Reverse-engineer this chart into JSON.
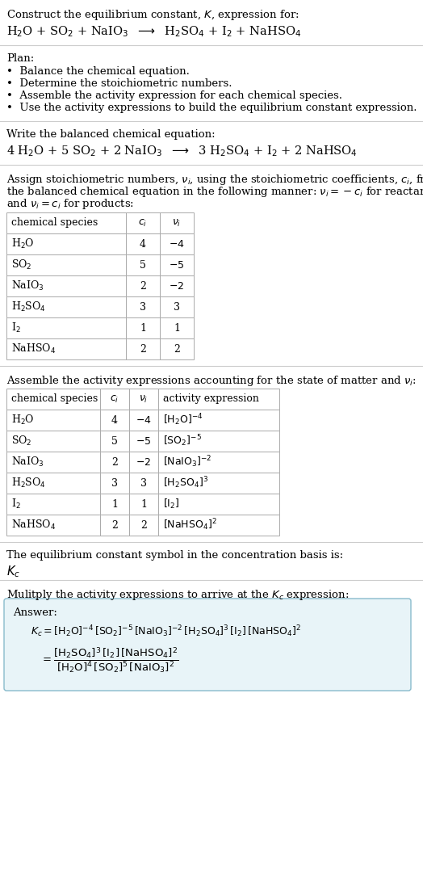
{
  "title_line1": "Construct the equilibrium constant, $K$, expression for:",
  "reaction_unbalanced": "H$_2$O + SO$_2$ + NaIO$_3$  $\\longrightarrow$  H$_2$SO$_4$ + I$_2$ + NaHSO$_4$",
  "plan_title": "Plan:",
  "plan_items": [
    "•  Balance the chemical equation.",
    "•  Determine the stoichiometric numbers.",
    "•  Assemble the activity expression for each chemical species.",
    "•  Use the activity expressions to build the equilibrium constant expression."
  ],
  "balanced_label": "Write the balanced chemical equation:",
  "reaction_balanced": "4 H$_2$O + 5 SO$_2$ + 2 NaIO$_3$  $\\longrightarrow$  3 H$_2$SO$_4$ + I$_2$ + 2 NaHSO$_4$",
  "stoich_intro_lines": [
    "Assign stoichiometric numbers, $\\nu_i$, using the stoichiometric coefficients, $c_i$, from",
    "the balanced chemical equation in the following manner: $\\nu_i = -c_i$ for reactants",
    "and $\\nu_i = c_i$ for products:"
  ],
  "table1_headers": [
    "chemical species",
    "$c_i$",
    "$\\nu_i$"
  ],
  "table1_rows": [
    [
      "H$_2$O",
      "4",
      "$-4$"
    ],
    [
      "SO$_2$",
      "5",
      "$-5$"
    ],
    [
      "NaIO$_3$",
      "2",
      "$-2$"
    ],
    [
      "H$_2$SO$_4$",
      "3",
      "3"
    ],
    [
      "I$_2$",
      "1",
      "1"
    ],
    [
      "NaHSO$_4$",
      "2",
      "2"
    ]
  ],
  "activity_intro": "Assemble the activity expressions accounting for the state of matter and $\\nu_i$:",
  "table2_headers": [
    "chemical species",
    "$c_i$",
    "$\\nu_i$",
    "activity expression"
  ],
  "table2_rows": [
    [
      "H$_2$O",
      "4",
      "$-4$",
      "$[\\mathrm{H_2O}]^{-4}$"
    ],
    [
      "SO$_2$",
      "5",
      "$-5$",
      "$[\\mathrm{SO_2}]^{-5}$"
    ],
    [
      "NaIO$_3$",
      "2",
      "$-2$",
      "$[\\mathrm{NaIO_3}]^{-2}$"
    ],
    [
      "H$_2$SO$_4$",
      "3",
      "3",
      "$[\\mathrm{H_2SO_4}]^3$"
    ],
    [
      "I$_2$",
      "1",
      "1",
      "$[\\mathrm{I_2}]$"
    ],
    [
      "NaHSO$_4$",
      "2",
      "2",
      "$[\\mathrm{NaHSO_4}]^2$"
    ]
  ],
  "kc_label": "The equilibrium constant symbol in the concentration basis is:",
  "kc_symbol": "$K_c$",
  "multiply_label": "Mulitply the activity expressions to arrive at the $K_c$ expression:",
  "answer_label": "Answer:",
  "answer_line1": "$K_c = [\\mathrm{H_2O}]^{-4}\\,[\\mathrm{SO_2}]^{-5}\\,[\\mathrm{NaIO_3}]^{-2}\\,[\\mathrm{H_2SO_4}]^3\\,[\\mathrm{I_2}]\\,[\\mathrm{NaHSO_4}]^2$",
  "answer_line2": "$= \\dfrac{[\\mathrm{H_2SO_4}]^3\\,[\\mathrm{I_2}]\\,[\\mathrm{NaHSO_4}]^2}{[\\mathrm{H_2O}]^4\\,[\\mathrm{SO_2}]^5\\,[\\mathrm{NaIO_3}]^2}$",
  "bg_color": "#ffffff",
  "text_color": "#000000",
  "table_border_color": "#aaaaaa",
  "answer_box_color": "#e8f4f8",
  "answer_box_border": "#88bbcc"
}
